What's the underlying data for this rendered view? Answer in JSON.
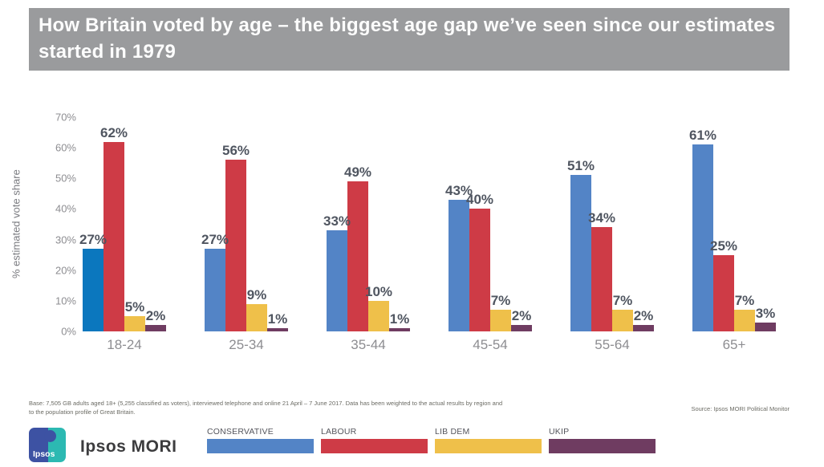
{
  "header": {
    "title": "How Britain voted by age – the biggest age gap we’ve seen since our estimates started in 1979",
    "background": "#9A9B9D"
  },
  "chart_data": {
    "type": "bar",
    "title": "How Britain voted by age",
    "xlabel": "",
    "ylabel": "% estimated vote share",
    "ylim": [
      0,
      70
    ],
    "yticks": [
      "0%",
      "10%",
      "20%",
      "30%",
      "40%",
      "50%",
      "60%",
      "70%"
    ],
    "grid": false,
    "legend_position": "bottom",
    "value_label_suffix": "%",
    "categories": [
      "18-24",
      "25-34",
      "35-44",
      "45-54",
      "55-64",
      "65+"
    ],
    "series": [
      {
        "name": "CONSERVATIVE",
        "color": "#5384C6",
        "values": [
          27,
          27,
          33,
          43,
          51,
          61
        ],
        "value_colors": {
          "0": "#0B77BE"
        }
      },
      {
        "name": "LABOUR",
        "color": "#CE3B46",
        "values": [
          62,
          56,
          49,
          40,
          34,
          25
        ]
      },
      {
        "name": "LIB DEM",
        "color": "#EFC04A",
        "values": [
          5,
          9,
          10,
          7,
          7,
          7
        ]
      },
      {
        "name": "UKIP",
        "color": "#6F3C61",
        "values": [
          2,
          1,
          1,
          2,
          2,
          3
        ]
      }
    ]
  },
  "footer": {
    "base_line1": "Base: 7,505 GB adults aged 18+ (5,255 classified as voters), interviewed telephone and online 21 April – 7 June 2017. Data has been weighted to the actual results by region and",
    "base_line2": "to the population profile of Great Britain.",
    "source": "Source: Ipsos MORI Political Monitor"
  },
  "branding": {
    "logo_text": "Ipsos",
    "wordmark": "Ipsos MORI"
  },
  "legend": {
    "items": [
      {
        "label": "CONSERVATIVE"
      },
      {
        "label": "LABOUR"
      },
      {
        "label": "LIB DEM"
      },
      {
        "label": "UKIP"
      }
    ]
  }
}
